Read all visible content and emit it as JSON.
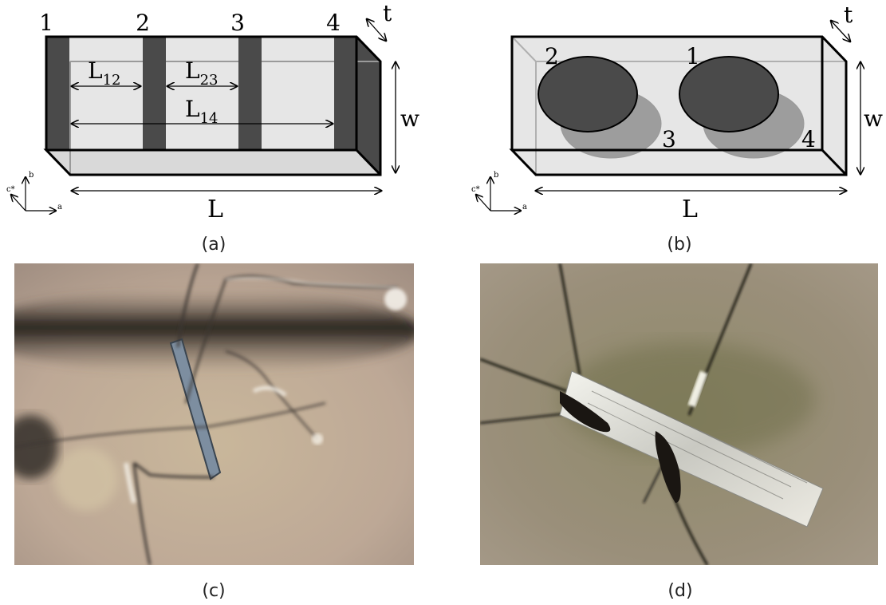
{
  "panel_a": {
    "caption": "(a)",
    "contact_labels": [
      "1",
      "2",
      "3",
      "4"
    ],
    "dim_labels": {
      "l12_base": "L",
      "l12_sub": "12",
      "l23_base": "L",
      "l23_sub": "23",
      "l14_base": "L",
      "l14_sub": "14",
      "length": "L",
      "width": "w",
      "thickness": "t"
    },
    "axes": {
      "a": "a",
      "b": "b",
      "c": "c*"
    },
    "colors": {
      "contact": "#4a4a4a",
      "face": "#e6e6e6"
    }
  },
  "panel_b": {
    "caption": "(b)",
    "contact_labels": [
      "2",
      "1",
      "3",
      "4"
    ],
    "dim_labels": {
      "length": "L",
      "width": "w",
      "thickness": "t"
    },
    "axes": {
      "a": "a",
      "b": "b",
      "c": "c*"
    },
    "colors": {
      "front_contact": "#4a4a4a",
      "back_contact": "#8f8f8f",
      "face": "#e6e6e6"
    }
  },
  "panel_c": {
    "caption": "(c)"
  },
  "panel_d": {
    "caption": "(d)"
  }
}
